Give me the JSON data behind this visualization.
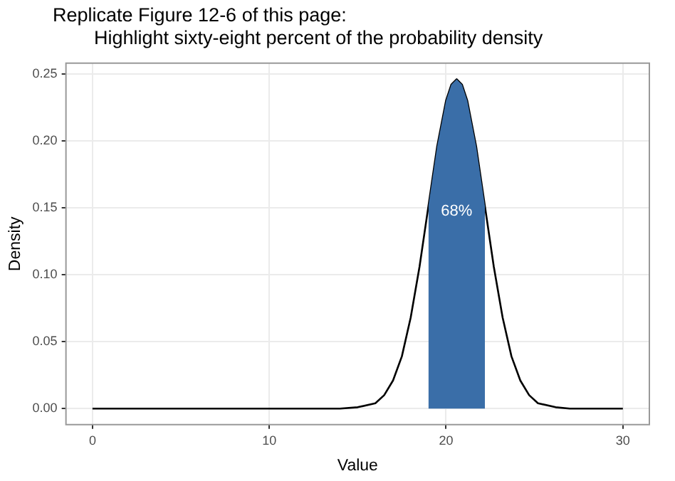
{
  "chart_data": {
    "type": "line",
    "title": "Replicate Figure 12-6 of this page:",
    "subtitle": "Highlight sixty-eight percent of the probability density",
    "xlabel": "Value",
    "ylabel": "Density",
    "series": [
      {
        "type": "area",
        "color": "#3a6ea8",
        "x": [
          19,
          19.5,
          20,
          20.3,
          20.6,
          20.9,
          21.2,
          21.7,
          22.2
        ],
        "values": [
          0.151,
          0.196,
          0.23,
          0.242,
          0.246,
          0.242,
          0.23,
          0.196,
          0.151
        ]
      },
      {
        "type": "line",
        "color": "#000000",
        "x": [
          0,
          10,
          14,
          15,
          16,
          16.5,
          17,
          17.5,
          18,
          18.5,
          19,
          19.5,
          20,
          20.3,
          20.6,
          20.9,
          21.2,
          21.7,
          22.2,
          22.7,
          23.2,
          23.7,
          24.2,
          24.7,
          25.2,
          26.2,
          27,
          30
        ],
        "values": [
          0,
          0,
          0,
          0.001,
          0.004,
          0.01,
          0.021,
          0.039,
          0.068,
          0.106,
          0.151,
          0.196,
          0.23,
          0.242,
          0.246,
          0.242,
          0.23,
          0.196,
          0.151,
          0.106,
          0.068,
          0.039,
          0.021,
          0.01,
          0.004,
          0.001,
          0,
          0
        ]
      }
    ],
    "annotations": [
      "68%"
    ],
    "xlim": [
      -1.5,
      31.5
    ],
    "xticks": [
      0,
      10,
      20,
      30
    ],
    "ylim": [
      -0.012,
      0.258
    ],
    "yticks": [
      {
        "value": 0,
        "label": "0.00"
      },
      {
        "value": 0.05,
        "label": "0.05"
      },
      {
        "value": 0.1,
        "label": "0.10"
      },
      {
        "value": 0.15,
        "label": "0.15"
      },
      {
        "value": 0.2,
        "label": "0.20"
      },
      {
        "value": 0.25,
        "label": "0.25"
      }
    ],
    "grid": true,
    "legend": false,
    "marker": "none",
    "line_style": "solid"
  }
}
